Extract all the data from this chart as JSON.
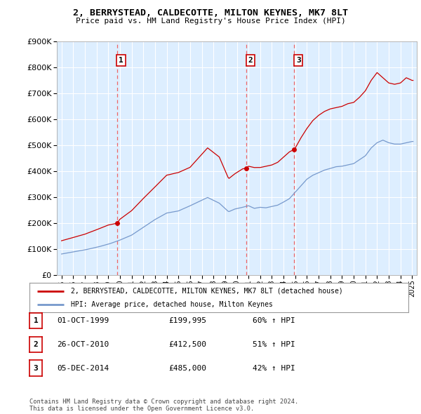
{
  "title": "2, BERRYSTEAD, CALDECOTTE, MILTON KEYNES, MK7 8LT",
  "subtitle": "Price paid vs. HM Land Registry's House Price Index (HPI)",
  "ylim": [
    0,
    900000
  ],
  "yticks": [
    0,
    100000,
    200000,
    300000,
    400000,
    500000,
    600000,
    700000,
    800000,
    900000
  ],
  "background_color": "#ffffff",
  "chart_bg_color": "#ddeeff",
  "grid_color": "#ffffff",
  "sale_dates": [
    1999.75,
    2010.83,
    2014.92
  ],
  "sale_prices": [
    199995,
    412500,
    485000
  ],
  "sale_labels": [
    "1",
    "2",
    "3"
  ],
  "sale_color": "#cc0000",
  "sale_vline_color": "#ee6666",
  "hpi_color": "#7799cc",
  "legend_sale_label": "2, BERRYSTEAD, CALDECOTTE, MILTON KEYNES, MK7 8LT (detached house)",
  "legend_hpi_label": "HPI: Average price, detached house, Milton Keynes",
  "table_rows": [
    [
      "1",
      "01-OCT-1999",
      "£199,995",
      "60% ↑ HPI"
    ],
    [
      "2",
      "26-OCT-2010",
      "£412,500",
      "51% ↑ HPI"
    ],
    [
      "3",
      "05-DEC-2014",
      "£485,000",
      "42% ↑ HPI"
    ]
  ],
  "footer_text": "Contains HM Land Registry data © Crown copyright and database right 2024.\nThis data is licensed under the Open Government Licence v3.0."
}
